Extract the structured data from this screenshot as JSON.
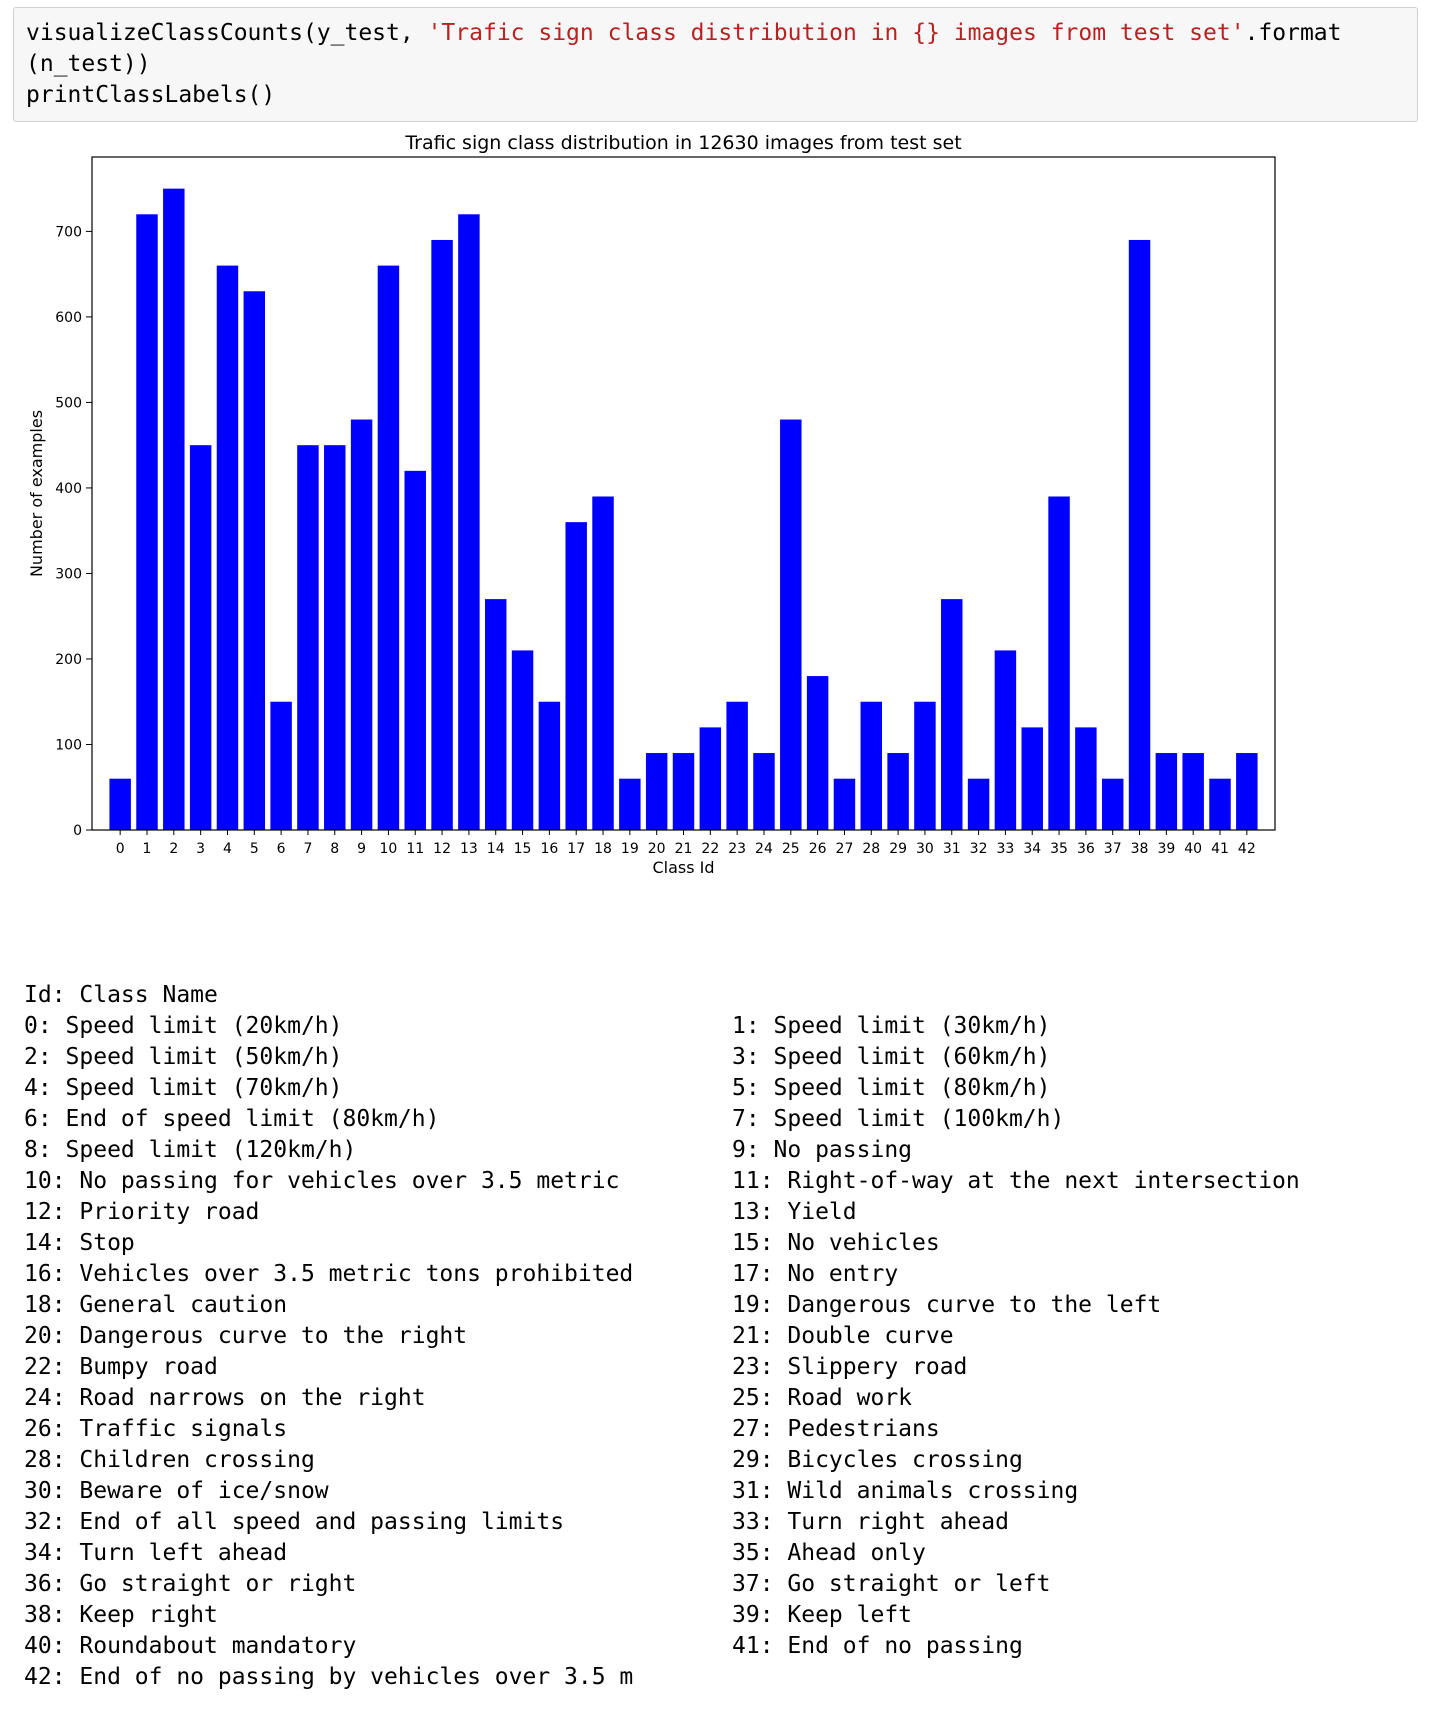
{
  "code": {
    "line1_prefix": "visualizeClassCounts(y_test, ",
    "line1_string": "'Trafic sign class distribution in {} images from test set'",
    "line1_suffix": ".format",
    "line2": "(n_test))",
    "line3": "printClassLabels()"
  },
  "chart_data": {
    "type": "bar",
    "title": "Trafic sign class distribution in 12630 images from test set",
    "xlabel": "Class Id",
    "ylabel": "Number of examples",
    "color": "#0000ff",
    "categories": [
      "0",
      "1",
      "2",
      "3",
      "4",
      "5",
      "6",
      "7",
      "8",
      "9",
      "10",
      "11",
      "12",
      "13",
      "14",
      "15",
      "16",
      "17",
      "18",
      "19",
      "20",
      "21",
      "22",
      "23",
      "24",
      "25",
      "26",
      "27",
      "28",
      "29",
      "30",
      "31",
      "32",
      "33",
      "34",
      "35",
      "36",
      "37",
      "38",
      "39",
      "40",
      "41",
      "42"
    ],
    "values": [
      60,
      720,
      750,
      450,
      660,
      630,
      150,
      450,
      450,
      480,
      660,
      420,
      690,
      720,
      270,
      210,
      150,
      360,
      390,
      60,
      90,
      90,
      120,
      150,
      90,
      480,
      180,
      60,
      150,
      90,
      150,
      270,
      60,
      210,
      120,
      390,
      120,
      60,
      690,
      90,
      90,
      60,
      90
    ],
    "yticks": [
      "0",
      "100",
      "200",
      "300",
      "400",
      "500",
      "600",
      "700"
    ],
    "ylim": [
      0,
      750
    ]
  },
  "labels": {
    "header": "Id: Class Name",
    "rows": [
      [
        "0: Speed limit (20km/h)",
        "1: Speed limit (30km/h)"
      ],
      [
        "2: Speed limit (50km/h)",
        "3: Speed limit (60km/h)"
      ],
      [
        "4: Speed limit (70km/h)",
        "5: Speed limit (80km/h)"
      ],
      [
        "6: End of speed limit (80km/h)",
        "7: Speed limit (100km/h)"
      ],
      [
        "8: Speed limit (120km/h)",
        "9: No passing"
      ],
      [
        "10: No passing for vehicles over 3.5 metric",
        "11: Right-of-way at the next intersection"
      ],
      [
        "12: Priority road",
        "13: Yield"
      ],
      [
        "14: Stop",
        "15: No vehicles"
      ],
      [
        "16: Vehicles over 3.5 metric tons prohibited",
        "17: No entry"
      ],
      [
        "18: General caution",
        "19: Dangerous curve to the left"
      ],
      [
        "20: Dangerous curve to the right",
        "21: Double curve"
      ],
      [
        "22: Bumpy road",
        "23: Slippery road"
      ],
      [
        "24: Road narrows on the right",
        "25: Road work"
      ],
      [
        "26: Traffic signals",
        "27: Pedestrians"
      ],
      [
        "28: Children crossing",
        "29: Bicycles crossing"
      ],
      [
        "30: Beware of ice/snow",
        "31: Wild animals crossing"
      ],
      [
        "32: End of all speed and passing limits",
        "33: Turn right ahead"
      ],
      [
        "34: Turn left ahead",
        "35: Ahead only"
      ],
      [
        "36: Go straight or right",
        "37: Go straight or left"
      ],
      [
        "38: Keep right",
        "39: Keep left"
      ],
      [
        "40: Roundabout mandatory",
        "41: End of no passing"
      ],
      [
        "42: End of no passing by vehicles over 3.5 m",
        ""
      ]
    ]
  }
}
